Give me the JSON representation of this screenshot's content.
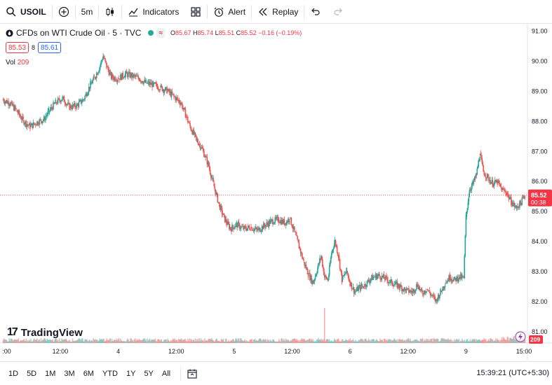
{
  "toolbar": {
    "symbol": "USOIL",
    "interval": "5m",
    "indicators_label": "Indicators",
    "alert_label": "Alert",
    "replay_label": "Replay"
  },
  "legend": {
    "title": "CFDs on WTI Crude Oil · 5 · TVC",
    "badge": "≈",
    "open_label": "O",
    "open": "85.67",
    "high_label": "H",
    "high": "85.74",
    "low_label": "L",
    "low": "85.51",
    "close_label": "C",
    "close": "85.52",
    "change": "−0.16 (−0.19%)"
  },
  "quote": {
    "sell": "85.53",
    "spread": "8",
    "buy": "85.61"
  },
  "volume": {
    "label": "Vol",
    "value": "209"
  },
  "brand": {
    "name": "TradingView"
  },
  "last_price": {
    "price": "85.52",
    "countdown": "00:38",
    "volume_tag": "209"
  },
  "ranges": [
    "1D",
    "5D",
    "1M",
    "3M",
    "6M",
    "YTD",
    "1Y",
    "5Y",
    "All"
  ],
  "clock": "15:39:21 (UTC+5:30)",
  "colors": {
    "up": "#26a69a",
    "down": "#ef5350",
    "price_line": "#f23645"
  },
  "chart_data": {
    "type": "candlestick",
    "y_ticks": [
      "91.00",
      "90.00",
      "89.00",
      "88.00",
      "87.00",
      "86.00",
      "85.00",
      "84.00",
      "83.00",
      "82.00",
      "81.00"
    ],
    "y_tick_values": [
      91,
      90,
      89,
      88,
      87,
      86,
      85,
      84,
      83,
      82,
      81
    ],
    "x_ticks": [
      ":00",
      "12:00",
      "4",
      "12:00",
      "5",
      "12:00",
      "6",
      "12:00",
      "9",
      "15:00"
    ],
    "x_tick_positions": [
      0,
      0.5,
      1,
      1.5,
      2,
      2.5,
      3,
      3.5,
      4,
      4.5
    ],
    "ylim": [
      80.6,
      91.2
    ],
    "close_series": [
      {
        "t": 0.0,
        "p": 88.7
      },
      {
        "t": 0.06,
        "p": 88.6
      },
      {
        "t": 0.12,
        "p": 88.35
      },
      {
        "t": 0.18,
        "p": 88.0
      },
      {
        "t": 0.24,
        "p": 87.8
      },
      {
        "t": 0.3,
        "p": 87.95
      },
      {
        "t": 0.36,
        "p": 88.05
      },
      {
        "t": 0.4,
        "p": 88.3
      },
      {
        "t": 0.46,
        "p": 88.6
      },
      {
        "t": 0.52,
        "p": 88.75
      },
      {
        "t": 0.58,
        "p": 88.45
      },
      {
        "t": 0.64,
        "p": 88.5
      },
      {
        "t": 0.7,
        "p": 88.7
      },
      {
        "t": 0.76,
        "p": 89.2
      },
      {
        "t": 0.8,
        "p": 89.45
      },
      {
        "t": 0.84,
        "p": 89.8
      },
      {
        "t": 0.87,
        "p": 90.15
      },
      {
        "t": 0.9,
        "p": 89.8
      },
      {
        "t": 0.94,
        "p": 89.45
      },
      {
        "t": 1.0,
        "p": 89.4
      },
      {
        "t": 1.06,
        "p": 89.55
      },
      {
        "t": 1.12,
        "p": 89.5
      },
      {
        "t": 1.18,
        "p": 89.4
      },
      {
        "t": 1.24,
        "p": 89.25
      },
      {
        "t": 1.3,
        "p": 89.2
      },
      {
        "t": 1.36,
        "p": 89.1
      },
      {
        "t": 1.42,
        "p": 89.0
      },
      {
        "t": 1.48,
        "p": 88.8
      },
      {
        "t": 1.54,
        "p": 88.6
      },
      {
        "t": 1.58,
        "p": 88.2
      },
      {
        "t": 1.62,
        "p": 87.8
      },
      {
        "t": 1.67,
        "p": 87.4
      },
      {
        "t": 1.72,
        "p": 87.1
      },
      {
        "t": 1.78,
        "p": 86.5
      },
      {
        "t": 1.82,
        "p": 85.9
      },
      {
        "t": 1.87,
        "p": 85.2
      },
      {
        "t": 1.92,
        "p": 84.7
      },
      {
        "t": 1.97,
        "p": 84.4
      },
      {
        "t": 2.02,
        "p": 84.55
      },
      {
        "t": 2.08,
        "p": 84.4
      },
      {
        "t": 2.14,
        "p": 84.45
      },
      {
        "t": 2.2,
        "p": 84.35
      },
      {
        "t": 2.26,
        "p": 84.5
      },
      {
        "t": 2.32,
        "p": 84.65
      },
      {
        "t": 2.38,
        "p": 84.7
      },
      {
        "t": 2.44,
        "p": 84.6
      },
      {
        "t": 2.48,
        "p": 84.75
      },
      {
        "t": 2.52,
        "p": 84.3
      },
      {
        "t": 2.56,
        "p": 83.8
      },
      {
        "t": 2.6,
        "p": 83.3
      },
      {
        "t": 2.64,
        "p": 82.9
      },
      {
        "t": 2.68,
        "p": 82.6
      },
      {
        "t": 2.72,
        "p": 83.1
      },
      {
        "t": 2.75,
        "p": 83.5
      },
      {
        "t": 2.78,
        "p": 82.8
      },
      {
        "t": 2.81,
        "p": 82.7
      },
      {
        "t": 2.84,
        "p": 83.6
      },
      {
        "t": 2.87,
        "p": 84.0
      },
      {
        "t": 2.9,
        "p": 83.5
      },
      {
        "t": 2.93,
        "p": 82.7
      },
      {
        "t": 2.97,
        "p": 83.0
      },
      {
        "t": 3.0,
        "p": 82.6
      },
      {
        "t": 3.04,
        "p": 82.3
      },
      {
        "t": 3.08,
        "p": 82.45
      },
      {
        "t": 3.12,
        "p": 82.5
      },
      {
        "t": 3.18,
        "p": 82.75
      },
      {
        "t": 3.24,
        "p": 82.85
      },
      {
        "t": 3.3,
        "p": 82.75
      },
      {
        "t": 3.36,
        "p": 82.6
      },
      {
        "t": 3.42,
        "p": 82.5
      },
      {
        "t": 3.48,
        "p": 82.35
      },
      {
        "t": 3.54,
        "p": 82.3
      },
      {
        "t": 3.58,
        "p": 82.55
      },
      {
        "t": 3.62,
        "p": 82.25
      },
      {
        "t": 3.66,
        "p": 82.4
      },
      {
        "t": 3.7,
        "p": 82.2
      },
      {
        "t": 3.74,
        "p": 82.0
      },
      {
        "t": 3.78,
        "p": 82.3
      },
      {
        "t": 3.82,
        "p": 82.6
      },
      {
        "t": 3.86,
        "p": 82.8
      },
      {
        "t": 3.9,
        "p": 82.7
      },
      {
        "t": 3.94,
        "p": 82.8
      },
      {
        "t": 3.98,
        "p": 82.75
      },
      {
        "t": 4.0,
        "p": 84.8
      },
      {
        "t": 4.03,
        "p": 85.7
      },
      {
        "t": 4.06,
        "p": 85.9
      },
      {
        "t": 4.09,
        "p": 86.2
      },
      {
        "t": 4.12,
        "p": 86.9
      },
      {
        "t": 4.15,
        "p": 86.3
      },
      {
        "t": 4.19,
        "p": 86.1
      },
      {
        "t": 4.23,
        "p": 85.9
      },
      {
        "t": 4.27,
        "p": 85.95
      },
      {
        "t": 4.31,
        "p": 85.7
      },
      {
        "t": 4.35,
        "p": 85.6
      },
      {
        "t": 4.39,
        "p": 85.3
      },
      {
        "t": 4.43,
        "p": 85.1
      },
      {
        "t": 4.47,
        "p": 85.25
      },
      {
        "t": 4.51,
        "p": 85.52
      }
    ],
    "volume": {
      "typical": 30,
      "spike_at": 2.78,
      "spike_value": 260,
      "last_value": 209
    },
    "last_price_value": 85.52
  }
}
